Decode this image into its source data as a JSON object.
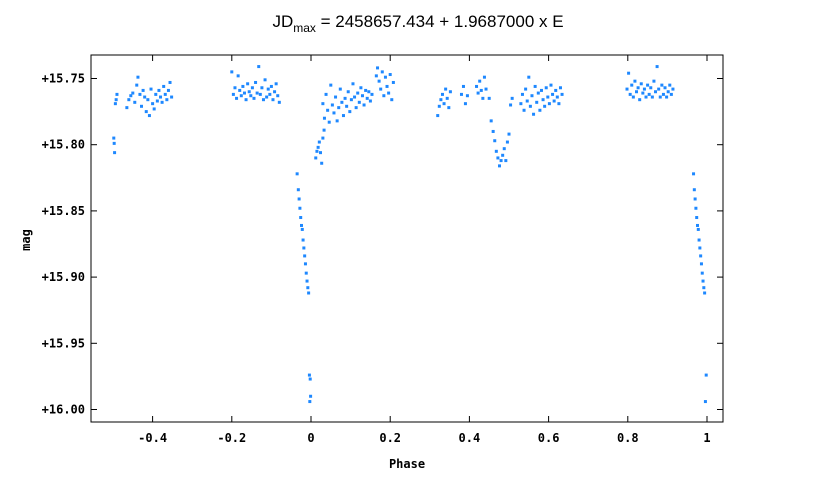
{
  "chart_data": {
    "type": "scatter",
    "title_parts": {
      "prefix": "JD",
      "subscript": "max",
      "rest": " = 2458657.434 + 1.9687000 x E"
    },
    "xlabel": "Phase",
    "ylabel": "mag",
    "xlim": [
      -0.5,
      1.0
    ],
    "ylim": [
      15.74,
      16.01
    ],
    "y_inverted": true,
    "grid": false,
    "legend": "none",
    "marker_color": "#1e88ff",
    "x_ticks": [
      -0.4,
      -0.2,
      0,
      0.2,
      0.4,
      0.6,
      0.8,
      1.0
    ],
    "x_tick_labels": [
      "-0.4",
      "-0.2",
      "0",
      "0.2",
      "0.4",
      "0.6",
      "0.8",
      "1"
    ],
    "y_ticks": [
      15.75,
      15.8,
      15.85,
      15.9,
      15.95,
      16.0
    ],
    "y_tick_labels": [
      "+15.75",
      "+15.80",
      "+15.85",
      "+15.90",
      "+15.95",
      "+16.00"
    ],
    "series": [
      {
        "points": [
          [
            -0.498,
            15.795
          ],
          [
            -0.497,
            15.799
          ],
          [
            -0.496,
            15.806
          ],
          [
            -0.494,
            15.769
          ],
          [
            -0.492,
            15.766
          ],
          [
            -0.49,
            15.762
          ],
          [
            -0.465,
            15.772
          ],
          [
            -0.46,
            15.766
          ],
          [
            -0.455,
            15.763
          ],
          [
            -0.45,
            15.761
          ],
          [
            -0.445,
            15.768
          ],
          [
            -0.44,
            15.755
          ],
          [
            -0.437,
            15.749
          ],
          [
            -0.432,
            15.762
          ],
          [
            -0.428,
            15.771
          ],
          [
            -0.424,
            15.759
          ],
          [
            -0.42,
            15.764
          ],
          [
            -0.416,
            15.775
          ],
          [
            -0.412,
            15.766
          ],
          [
            -0.408,
            15.778
          ],
          [
            -0.404,
            15.758
          ],
          [
            -0.4,
            15.769
          ],
          [
            -0.396,
            15.773
          ],
          [
            -0.392,
            15.762
          ],
          [
            -0.388,
            15.767
          ],
          [
            -0.384,
            15.759
          ],
          [
            -0.38,
            15.764
          ],
          [
            -0.376,
            15.768
          ],
          [
            -0.372,
            15.756
          ],
          [
            -0.368,
            15.762
          ],
          [
            -0.364,
            15.766
          ],
          [
            -0.36,
            15.759
          ],
          [
            -0.356,
            15.753
          ],
          [
            -0.352,
            15.764
          ],
          [
            -0.2,
            15.745
          ],
          [
            -0.196,
            15.762
          ],
          [
            -0.192,
            15.757
          ],
          [
            -0.188,
            15.765
          ],
          [
            -0.184,
            15.748
          ],
          [
            -0.18,
            15.759
          ],
          [
            -0.176,
            15.763
          ],
          [
            -0.172,
            15.756
          ],
          [
            -0.168,
            15.761
          ],
          [
            -0.164,
            15.766
          ],
          [
            -0.16,
            15.754
          ],
          [
            -0.156,
            15.76
          ],
          [
            -0.152,
            15.763
          ],
          [
            -0.148,
            15.757
          ],
          [
            -0.144,
            15.765
          ],
          [
            -0.14,
            15.753
          ],
          [
            -0.136,
            15.761
          ],
          [
            -0.132,
            15.741
          ],
          [
            -0.128,
            15.762
          ],
          [
            -0.124,
            15.757
          ],
          [
            -0.12,
            15.766
          ],
          [
            -0.116,
            15.751
          ],
          [
            -0.112,
            15.764
          ],
          [
            -0.108,
            15.758
          ],
          [
            -0.104,
            15.762
          ],
          [
            -0.1,
            15.756
          ],
          [
            -0.096,
            15.766
          ],
          [
            -0.092,
            15.76
          ],
          [
            -0.088,
            15.754
          ],
          [
            -0.084,
            15.763
          ],
          [
            -0.08,
            15.768
          ],
          [
            -0.035,
            15.822
          ],
          [
            -0.032,
            15.834
          ],
          [
            -0.03,
            15.841
          ],
          [
            -0.028,
            15.848
          ],
          [
            -0.026,
            15.855
          ],
          [
            -0.024,
            15.861
          ],
          [
            -0.022,
            15.864
          ],
          [
            -0.02,
            15.872
          ],
          [
            -0.018,
            15.878
          ],
          [
            -0.016,
            15.884
          ],
          [
            -0.014,
            15.89
          ],
          [
            -0.012,
            15.897
          ],
          [
            -0.01,
            15.903
          ],
          [
            -0.008,
            15.908
          ],
          [
            -0.006,
            15.912
          ],
          [
            -0.004,
            15.974
          ],
          [
            -0.002,
            15.977
          ],
          [
            -0.003,
            15.994
          ],
          [
            -0.001,
            15.99
          ],
          [
            0.012,
            15.81
          ],
          [
            0.015,
            15.805
          ],
          [
            0.018,
            15.802
          ],
          [
            0.021,
            15.798
          ],
          [
            0.024,
            15.806
          ],
          [
            0.027,
            15.814
          ],
          [
            0.03,
            15.795
          ],
          [
            0.033,
            15.789
          ],
          [
            0.03,
            15.769
          ],
          [
            0.034,
            15.78
          ],
          [
            0.038,
            15.762
          ],
          [
            0.042,
            15.774
          ],
          [
            0.046,
            15.783
          ],
          [
            0.05,
            15.755
          ],
          [
            0.054,
            15.77
          ],
          [
            0.058,
            15.776
          ],
          [
            0.062,
            15.764
          ],
          [
            0.066,
            15.782
          ],
          [
            0.07,
            15.772
          ],
          [
            0.074,
            15.758
          ],
          [
            0.078,
            15.768
          ],
          [
            0.082,
            15.778
          ],
          [
            0.086,
            15.765
          ],
          [
            0.09,
            15.771
          ],
          [
            0.094,
            15.76
          ],
          [
            0.098,
            15.775
          ],
          [
            0.102,
            15.766
          ],
          [
            0.106,
            15.754
          ],
          [
            0.11,
            15.764
          ],
          [
            0.114,
            15.772
          ],
          [
            0.118,
            15.761
          ],
          [
            0.122,
            15.768
          ],
          [
            0.126,
            15.757
          ],
          [
            0.13,
            15.763
          ],
          [
            0.134,
            15.77
          ],
          [
            0.138,
            15.759
          ],
          [
            0.142,
            15.765
          ],
          [
            0.146,
            15.76
          ],
          [
            0.15,
            15.767
          ],
          [
            0.154,
            15.762
          ],
          [
            0.165,
            15.748
          ],
          [
            0.168,
            15.742
          ],
          [
            0.172,
            15.752
          ],
          [
            0.176,
            15.758
          ],
          [
            0.18,
            15.745
          ],
          [
            0.184,
            15.763
          ],
          [
            0.188,
            15.749
          ],
          [
            0.192,
            15.756
          ],
          [
            0.196,
            15.761
          ],
          [
            0.2,
            15.747
          ],
          [
            0.204,
            15.766
          ],
          [
            0.208,
            15.753
          ],
          [
            0.32,
            15.778
          ],
          [
            0.324,
            15.771
          ],
          [
            0.328,
            15.766
          ],
          [
            0.332,
            15.762
          ],
          [
            0.336,
            15.769
          ],
          [
            0.34,
            15.758
          ],
          [
            0.344,
            15.765
          ],
          [
            0.348,
            15.772
          ],
          [
            0.352,
            15.76
          ],
          [
            0.38,
            15.762
          ],
          [
            0.385,
            15.756
          ],
          [
            0.39,
            15.769
          ],
          [
            0.395,
            15.763
          ],
          [
            0.418,
            15.756
          ],
          [
            0.422,
            15.761
          ],
          [
            0.426,
            15.752
          ],
          [
            0.43,
            15.759
          ],
          [
            0.434,
            15.765
          ],
          [
            0.438,
            15.749
          ],
          [
            0.442,
            15.758
          ],
          [
            0.45,
            15.765
          ],
          [
            0.455,
            15.782
          ],
          [
            0.46,
            15.79
          ],
          [
            0.464,
            15.797
          ],
          [
            0.468,
            15.805
          ],
          [
            0.472,
            15.81
          ],
          [
            0.476,
            15.816
          ],
          [
            0.48,
            15.812
          ],
          [
            0.484,
            15.808
          ],
          [
            0.488,
            15.803
          ],
          [
            0.492,
            15.812
          ],
          [
            0.496,
            15.798
          ],
          [
            0.5,
            15.792
          ],
          [
            0.504,
            15.77
          ],
          [
            0.508,
            15.765
          ],
          [
            0.53,
            15.769
          ],
          [
            0.534,
            15.762
          ],
          [
            0.538,
            15.774
          ],
          [
            0.542,
            15.758
          ],
          [
            0.546,
            15.767
          ],
          [
            0.55,
            15.749
          ],
          [
            0.554,
            15.771
          ],
          [
            0.558,
            15.763
          ],
          [
            0.562,
            15.777
          ],
          [
            0.566,
            15.756
          ],
          [
            0.57,
            15.768
          ],
          [
            0.574,
            15.761
          ],
          [
            0.578,
            15.774
          ],
          [
            0.582,
            15.759
          ],
          [
            0.586,
            15.766
          ],
          [
            0.59,
            15.771
          ],
          [
            0.594,
            15.757
          ],
          [
            0.598,
            15.764
          ],
          [
            0.602,
            15.769
          ],
          [
            0.606,
            15.755
          ],
          [
            0.61,
            15.762
          ],
          [
            0.614,
            15.767
          ],
          [
            0.618,
            15.759
          ],
          [
            0.622,
            15.764
          ],
          [
            0.626,
            15.769
          ],
          [
            0.63,
            15.757
          ],
          [
            0.634,
            15.762
          ],
          [
            0.798,
            15.758
          ],
          [
            0.802,
            15.746
          ],
          [
            0.806,
            15.762
          ],
          [
            0.81,
            15.755
          ],
          [
            0.814,
            15.764
          ],
          [
            0.818,
            15.752
          ],
          [
            0.822,
            15.76
          ],
          [
            0.826,
            15.757
          ],
          [
            0.83,
            15.766
          ],
          [
            0.834,
            15.754
          ],
          [
            0.838,
            15.761
          ],
          [
            0.842,
            15.758
          ],
          [
            0.846,
            15.764
          ],
          [
            0.85,
            15.755
          ],
          [
            0.854,
            15.762
          ],
          [
            0.858,
            15.757
          ],
          [
            0.862,
            15.764
          ],
          [
            0.866,
            15.752
          ],
          [
            0.87,
            15.76
          ],
          [
            0.874,
            15.741
          ],
          [
            0.878,
            15.758
          ],
          [
            0.882,
            15.764
          ],
          [
            0.886,
            15.755
          ],
          [
            0.89,
            15.762
          ],
          [
            0.894,
            15.757
          ],
          [
            0.898,
            15.764
          ],
          [
            0.902,
            15.76
          ],
          [
            0.906,
            15.755
          ],
          [
            0.91,
            15.762
          ],
          [
            0.914,
            15.758
          ],
          [
            0.966,
            15.822
          ],
          [
            0.968,
            15.834
          ],
          [
            0.97,
            15.841
          ],
          [
            0.972,
            15.848
          ],
          [
            0.974,
            15.855
          ],
          [
            0.976,
            15.861
          ],
          [
            0.978,
            15.864
          ],
          [
            0.98,
            15.872
          ],
          [
            0.982,
            15.878
          ],
          [
            0.984,
            15.884
          ],
          [
            0.986,
            15.89
          ],
          [
            0.988,
            15.897
          ],
          [
            0.99,
            15.903
          ],
          [
            0.992,
            15.908
          ],
          [
            0.994,
            15.912
          ],
          [
            0.998,
            15.974
          ],
          [
            0.996,
            15.994
          ]
        ]
      }
    ]
  }
}
